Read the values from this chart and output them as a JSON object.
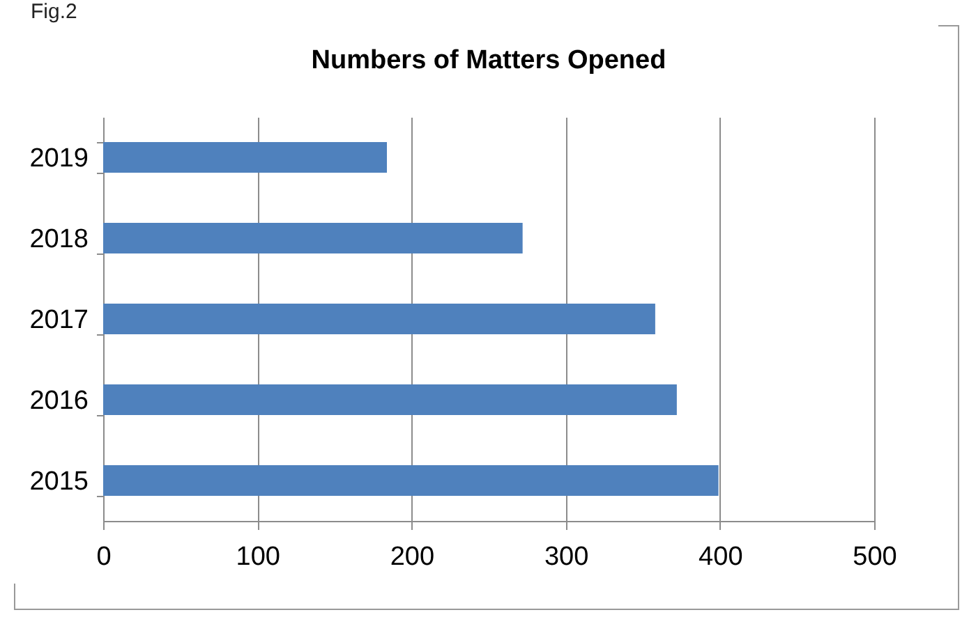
{
  "chart_data": {
    "type": "bar",
    "orientation": "horizontal",
    "title": "Numbers of Matters Opened",
    "categories": [
      "2019",
      "2018",
      "2017",
      "2016",
      "2015"
    ],
    "values": [
      184,
      272,
      358,
      372,
      399
    ],
    "color": "#4f81bd",
    "xlim": [
      0,
      500
    ],
    "xticks": [
      0,
      100,
      200,
      300,
      400,
      500
    ],
    "grid": "x",
    "annotations": [
      "Fig.2"
    ]
  }
}
